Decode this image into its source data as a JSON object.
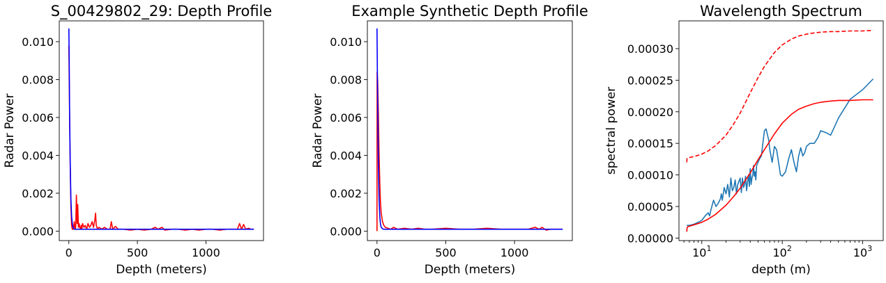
{
  "chart_data": [
    {
      "type": "line",
      "title": "S_00429802_29: Depth Profile",
      "xlabel": "Depth (meters)",
      "ylabel": "Radar Power",
      "xlim": [
        -70,
        1420
      ],
      "ylim": [
        -0.0005,
        0.0111
      ],
      "xticks": [
        0,
        500,
        1000
      ],
      "xtick_labels": [
        "0",
        "500",
        "1000"
      ],
      "yticks": [
        0.0,
        0.002,
        0.004,
        0.006,
        0.008,
        0.01
      ],
      "ytick_labels": [
        "0.000",
        "0.002",
        "0.004",
        "0.006",
        "0.008",
        "0.010"
      ],
      "grid": false,
      "series": [
        {
          "color": "#ff0000",
          "x": [
            0,
            5,
            10,
            15,
            20,
            25,
            30,
            35,
            40,
            45,
            50,
            55,
            60,
            65,
            70,
            75,
            80,
            85,
            90,
            95,
            100,
            110,
            120,
            130,
            140,
            150,
            160,
            170,
            180,
            190,
            195,
            200,
            210,
            220,
            240,
            260,
            280,
            300,
            310,
            320,
            340,
            360,
            380,
            400,
            450,
            500,
            550,
            600,
            630,
            650,
            680,
            700,
            750,
            800,
            850,
            900,
            950,
            1000,
            1050,
            1100,
            1150,
            1200,
            1230,
            1245,
            1260,
            1275,
            1290,
            1310,
            1330,
            1350
          ],
          "y": [
            0.0098,
            0.0065,
            0.0035,
            0.0013,
            0.0003,
            0.0001,
            0.0001,
            0.0002,
            0.0005,
            0.0001,
            0.0002,
            0.0019,
            0.0004,
            0.0014,
            0.0002,
            0.0004,
            0.0002,
            0.0001,
            0.0003,
            0.0001,
            0.0004,
            0.0002,
            0.0003,
            0.0001,
            0.0004,
            0.0002,
            0.0003,
            0.0005,
            0.0002,
            0.0006,
            0.00095,
            0.0003,
            0.0001,
            0.0002,
            0.0001,
            0.0002,
            0.0001,
            0.0001,
            0.0005,
            0.0001,
            0.00025,
            0.0001,
            0.0001,
            0.0001,
            5e-05,
            0.0001,
            5e-05,
            0.0001,
            0.0002,
            0.0001,
            0.0002,
            5e-05,
            0.0001,
            0.0001,
            5e-05,
            0.0001,
            5e-05,
            0.0001,
            0.0001,
            5e-05,
            0.0001,
            0.0001,
            0.0001,
            0.0004,
            0.0001,
            0.00035,
            0.0001,
            0.00015,
            0.0001,
            0.0001
          ]
        },
        {
          "color": "#0000ff",
          "x": [
            0,
            3,
            6,
            10,
            15,
            20,
            25,
            30,
            35,
            40,
            50,
            60,
            80,
            100,
            150,
            200,
            300,
            400,
            500,
            600,
            700,
            800,
            900,
            1000,
            1100,
            1200,
            1300,
            1350
          ],
          "y": [
            0.0107,
            0.0085,
            0.006,
            0.0037,
            0.0017,
            0.0008,
            0.0004,
            0.00022,
            0.00015,
            0.0001,
            0.0001,
            0.0001,
            0.0001,
            0.0001,
            0.0001,
            0.0001,
            0.0001,
            0.0001,
            0.0001,
            0.0001,
            0.0001,
            0.0001,
            0.0001,
            0.0001,
            0.0001,
            0.0001,
            0.0001,
            0.0001
          ]
        }
      ]
    },
    {
      "type": "line",
      "title": "Example Synthetic Depth Profile",
      "xlabel": "Depth (meters)",
      "ylabel": "Radar Power",
      "xlim": [
        -70,
        1420
      ],
      "ylim": [
        -0.0005,
        0.0111
      ],
      "xticks": [
        0,
        500,
        1000
      ],
      "xtick_labels": [
        "0",
        "500",
        "1000"
      ],
      "yticks": [
        0.0,
        0.002,
        0.004,
        0.006,
        0.008,
        0.01
      ],
      "ytick_labels": [
        "0.000",
        "0.002",
        "0.004",
        "0.006",
        "0.008",
        "0.010"
      ],
      "grid": false,
      "series": [
        {
          "color": "#ff0000",
          "x": [
            0,
            1,
            3,
            5,
            10,
            15,
            20,
            25,
            30,
            40,
            50,
            60,
            80,
            100,
            120,
            150,
            200,
            250,
            300,
            350,
            400,
            500,
            600,
            700,
            800,
            900,
            1000,
            1100,
            1150,
            1180,
            1200,
            1230,
            1260,
            1300,
            1350
          ],
          "y": [
            0.0,
            0.0084,
            0.0081,
            0.0079,
            0.0062,
            0.0041,
            0.0026,
            0.0016,
            0.001,
            0.0005,
            0.0003,
            0.0002,
            0.00015,
            0.0001,
            0.0002,
            0.0001,
            0.00015,
            0.0001,
            0.00015,
            0.0001,
            0.0001,
            0.00015,
            0.0001,
            0.0001,
            0.00015,
            0.0001,
            0.0001,
            0.0001,
            0.0002,
            0.0001,
            0.0002,
            5e-05,
            0.0001,
            0.0001,
            0.0001
          ]
        },
        {
          "color": "#0000ff",
          "x": [
            0,
            3,
            6,
            10,
            15,
            20,
            25,
            30,
            40,
            50,
            60,
            80,
            100,
            150,
            200,
            300,
            400,
            500,
            600,
            700,
            800,
            900,
            1000,
            1100,
            1200,
            1300,
            1350
          ],
          "y": [
            0.0107,
            0.0082,
            0.006,
            0.0035,
            0.0017,
            0.0008,
            0.0004,
            0.00022,
            0.00012,
            0.0001,
            0.0001,
            0.0001,
            0.0001,
            0.0001,
            0.0001,
            0.0001,
            0.0001,
            0.0001,
            0.0001,
            0.0001,
            0.0001,
            0.0001,
            0.0001,
            0.0001,
            0.0001,
            0.0001,
            0.0001
          ]
        }
      ]
    },
    {
      "type": "line",
      "title": "Wavelength Spectrum",
      "xlabel": "depth (m)",
      "ylabel": "spectral power",
      "xscale": "log",
      "xlim": [
        5.2,
        1800
      ],
      "ylim": [
        -4e-06,
        0.000344
      ],
      "xticks": [
        10,
        100,
        1000
      ],
      "xtick_labels": [
        "10",
        "10",
        "10"
      ],
      "xtick_exponents": [
        "1",
        "2",
        "3"
      ],
      "yticks": [
        0.0,
        5e-05,
        0.0001,
        0.00015,
        0.0002,
        0.00025,
        0.0003
      ],
      "ytick_labels": [
        "0.00000",
        "0.00005",
        "0.00010",
        "0.00015",
        "0.00020",
        "0.00025",
        "0.00030"
      ],
      "grid": false,
      "series": [
        {
          "color": "#1f77b4",
          "style": "solid",
          "x": [
            6.5,
            7,
            8,
            9,
            10,
            11,
            12,
            12.5,
            13,
            14,
            15,
            16,
            17,
            17.5,
            18,
            19,
            20,
            21,
            22,
            23,
            24,
            25,
            26,
            27,
            28,
            29,
            30,
            31,
            32,
            33,
            34,
            35,
            36,
            37,
            38,
            39,
            40,
            41,
            42,
            43,
            44,
            45,
            46,
            47,
            48,
            50,
            52,
            55,
            58,
            60,
            63,
            65,
            68,
            70,
            75,
            80,
            85,
            90,
            95,
            100,
            110,
            120,
            130,
            140,
            150,
            160,
            170,
            180,
            190,
            200,
            220,
            250,
            280,
            300,
            350,
            400,
            500,
            700,
            1000,
            1350
          ],
          "y": [
            2e-05,
            2e-05,
            2.2e-05,
            2.5e-05,
            2.8e-05,
            3.5e-05,
            4e-05,
            3.5e-05,
            4.5e-05,
            6e-05,
            5e-05,
            5.5e-05,
            6.2e-05,
            7e-05,
            6e-05,
            8e-05,
            7e-05,
            8.5e-05,
            6.5e-05,
            9.5e-05,
            7.5e-05,
            8e-05,
            9.2e-05,
            7e-05,
            8.5e-05,
            9e-05,
            9.5e-05,
            7.2e-05,
            9.5e-05,
            8e-05,
            8.5e-05,
            9.8e-05,
            7.5e-05,
            8.8e-05,
            0.0001,
            8.2e-05,
            0.00011,
            8.5e-05,
            9.5e-05,
            0.0001,
            0.000115,
            9.8e-05,
            0.000105,
            9.2e-05,
            0.000115,
            0.00012,
            0.000125,
            0.00013,
            0.000155,
            0.00017,
            0.000173,
            0.000165,
            0.000155,
            0.00014,
            0.00012,
            0.000145,
            0.00014,
            0.00012,
            0.0001,
            9.8e-05,
            0.000105,
            0.000125,
            0.00014,
            0.00012,
            0.000105,
            0.00013,
            0.000143,
            0.00013,
            0.000135,
            0.000145,
            0.00015,
            0.00015,
            0.00016,
            0.00017,
            0.000167,
            0.000163,
            0.00019,
            0.00022,
            0.000235,
            0.000252
          ]
        },
        {
          "color": "#ff0000",
          "style": "solid",
          "x": [
            6.5,
            6.55,
            6.7,
            8,
            10,
            12,
            15,
            20,
            25,
            30,
            40,
            50,
            60,
            80,
            100,
            130,
            160,
            200,
            250,
            300,
            400,
            500,
            700,
            1000,
            1350
          ],
          "y": [
            1e-05,
            1.6e-05,
            1.8e-05,
            2.1e-05,
            2.5e-05,
            3e-05,
            3.8e-05,
            5.2e-05,
            6.6e-05,
            7.9e-05,
            0.000103,
            0.000124,
            0.00014,
            0.000165,
            0.000182,
            0.000196,
            0.000204,
            0.000209,
            0.000213,
            0.000215,
            0.000217,
            0.000218,
            0.000218,
            0.000219,
            0.000219
          ]
        },
        {
          "color": "#ff0000",
          "style": "dashed",
          "x": [
            6.5,
            6.55,
            6.7,
            8,
            10,
            12,
            15,
            20,
            25,
            30,
            40,
            50,
            60,
            80,
            100,
            130,
            160,
            200,
            250,
            300,
            400,
            500,
            700,
            1000,
            1350
          ],
          "y": [
            0.00012,
            0.000126,
            0.000127,
            0.000129,
            0.000133,
            0.000138,
            0.000147,
            0.000163,
            0.000181,
            0.000198,
            0.00023,
            0.000254,
            0.000272,
            0.000294,
            0.000306,
            0.000315,
            0.00032,
            0.000323,
            0.000325,
            0.000326,
            0.000327,
            0.000327,
            0.000328,
            0.000328,
            0.000329
          ]
        }
      ]
    }
  ]
}
